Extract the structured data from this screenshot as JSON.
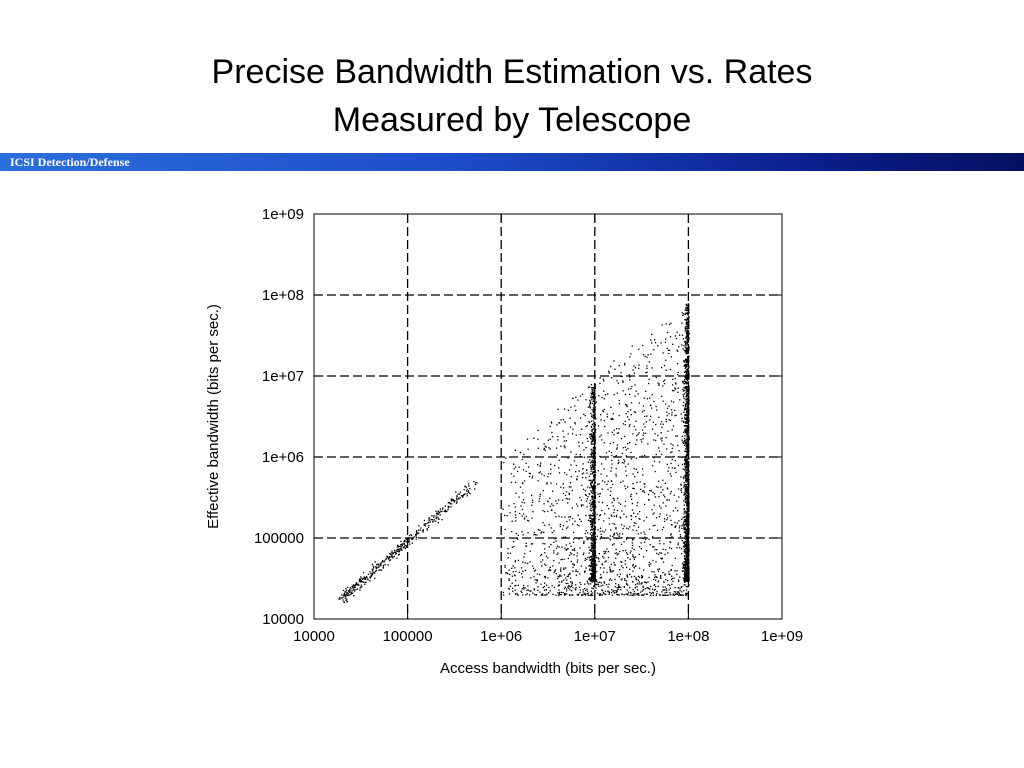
{
  "slide": {
    "title_line1": "Precise Bandwidth Estimation vs. Rates",
    "title_line2": "Measured by Telescope",
    "header_label": "ICSI Detection/Defense"
  },
  "chart_data": {
    "type": "scatter",
    "title": "",
    "xlabel": "Access bandwidth (bits per sec.)",
    "ylabel": "Effective bandwidth (bits per sec.)",
    "xscale": "log",
    "yscale": "log",
    "xlim": [
      10000,
      1000000000
    ],
    "ylim": [
      10000,
      1000000000
    ],
    "xticks": [
      "10000",
      "100000",
      "1e+06",
      "1e+07",
      "1e+08",
      "1e+09"
    ],
    "yticks": [
      "10000",
      "100000",
      "1e+06",
      "1e+07",
      "1e+08",
      "1e+09"
    ],
    "grid": true,
    "legend": "none",
    "point_color": "#000000",
    "clusters": [
      {
        "region": "diagonal 20 Kbps to 500 Kbps",
        "x_range": [
          20000,
          500000
        ],
        "y_equals_x": true,
        "approx_points": 400
      },
      {
        "region": "column at 10 Mbps",
        "x": 10000000,
        "y_range": [
          30000,
          8000000
        ],
        "approx_points": 900
      },
      {
        "region": "column at 100 Mbps",
        "x": 100000000,
        "y_range": [
          30000,
          80000000
        ],
        "approx_points": 1600
      },
      {
        "region": "scatter between 1 Mbps and 100 Mbps",
        "x_range": [
          1000000,
          100000000
        ],
        "y_range": [
          20000,
          50000000
        ],
        "approx_points": 1800
      }
    ]
  }
}
